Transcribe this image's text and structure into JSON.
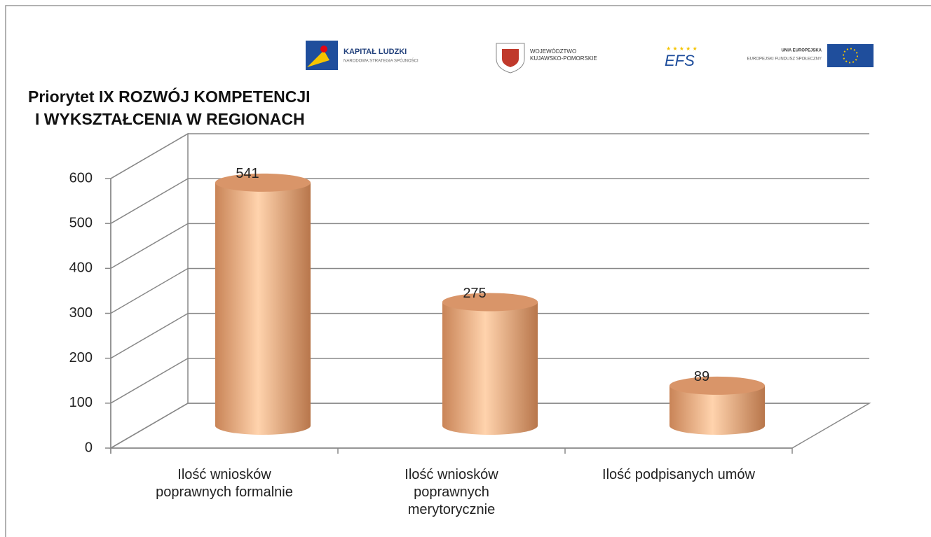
{
  "header": {
    "logos": [
      {
        "title": "KAPITAŁ LUDZKI",
        "subtitle": "NARODOWA STRATEGIA SPÓJNOŚCI"
      },
      {
        "title": "WOJEWÓDZTWO",
        "subtitle": "KUJAWSKO-POMORSKIE"
      },
      {
        "title": "EFS"
      },
      {
        "title": "UNIA EUROPEJSKA",
        "subtitle": "EUROPEJSKI FUNDUSZ SPOŁECZNY"
      }
    ]
  },
  "chart_data": {
    "type": "bar3d",
    "title": [
      "Priorytet IX ROZWÓJ KOMPETENCJI",
      "I WYKSZTAŁCENIA W REGIONACH"
    ],
    "categories": [
      "Ilość wniosków poprawnych formalnie",
      "Ilość wniosków poprawnych merytorycznie",
      "Ilość podpisanych umów"
    ],
    "values": [
      541,
      275,
      89
    ],
    "color": "#f0a878",
    "ylim": [
      0,
      600
    ],
    "yticks": [
      0,
      100,
      200,
      300,
      400,
      500,
      600
    ],
    "grid": true
  }
}
